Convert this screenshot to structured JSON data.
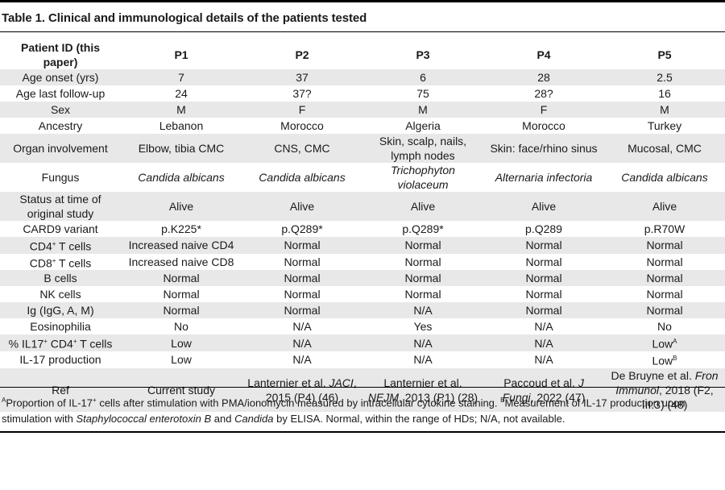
{
  "title": "Table 1. Clinical and immunological details of the patients tested",
  "headers": [
    "Patient ID (this paper)",
    "P1",
    "P2",
    "P3",
    "P4",
    "P5"
  ],
  "rows": [
    {
      "label": "Age onset (yrs)",
      "cells": [
        "7",
        "37",
        "6",
        "28",
        "2.5"
      ]
    },
    {
      "label": "Age last follow-up",
      "cells": [
        "24",
        "37?",
        "75",
        "28?",
        "16"
      ]
    },
    {
      "label": "Sex",
      "cells": [
        "M",
        "F",
        "M",
        "F",
        "M"
      ]
    },
    {
      "label": "Ancestry",
      "cells": [
        "Lebanon",
        "Morocco",
        "Algeria",
        "Morocco",
        "Turkey"
      ]
    },
    {
      "label": "Organ involvement",
      "cells": [
        "Elbow, tibia CMC",
        "CNS, CMC",
        "Skin, scalp, nails, lymph nodes",
        "Skin: face/rhino sinus",
        "Mucosal, CMC"
      ]
    },
    {
      "label": "Fungus",
      "cells": [
        "Candida albicans",
        "Candida albicans",
        "Trichophyton violaceum",
        "Alternaria infectoria",
        "Candida albicans"
      ]
    },
    {
      "label": "Status at time of original study",
      "cells": [
        "Alive",
        "Alive",
        "Alive",
        "Alive",
        "Alive"
      ]
    },
    {
      "label": "CARD9 variant",
      "cells": [
        "p.K225*",
        "p.Q289*",
        "p.Q289*",
        "p.Q289",
        "p.R70W"
      ]
    },
    {
      "label_pre": "CD4",
      "label_sup": "+",
      "label_post": " T cells",
      "cells": [
        "Increased naive CD4",
        "Normal",
        "Normal",
        "Normal",
        "Normal"
      ]
    },
    {
      "label_pre": "CD8",
      "label_sup": "+",
      "label_post": " T cells",
      "cells": [
        "Increased naive CD8",
        "Normal",
        "Normal",
        "Normal",
        "Normal"
      ]
    },
    {
      "label": "B cells",
      "cells": [
        "Normal",
        "Normal",
        "Normal",
        "Normal",
        "Normal"
      ]
    },
    {
      "label": "NK cells",
      "cells": [
        "Normal",
        "Normal",
        "Normal",
        "Normal",
        "Normal"
      ]
    },
    {
      "label": "Ig (IgG, A, M)",
      "cells": [
        "Normal",
        "Normal",
        "N/A",
        "Normal",
        "Normal"
      ]
    },
    {
      "label": "Eosinophilia",
      "cells": [
        "No",
        "N/A",
        "Yes",
        "N/A",
        "No"
      ]
    },
    {
      "label_pre": "% IL17",
      "label_sup": "+",
      "label_mid": " CD4",
      "label_sup2": "+",
      "label_post": " T cells",
      "cells": [
        "Low",
        "N/A",
        "N/A",
        "N/A",
        "Low"
      ],
      "p5_sup": "A"
    },
    {
      "label": "IL-17 production",
      "cells": [
        "Low",
        "N/A",
        "N/A",
        "N/A",
        "Low"
      ],
      "p5_sup": "B"
    },
    {
      "label": "Ref",
      "refs": [
        {
          "text": "Current study"
        },
        {
          "pre": "Lanternier et al. ",
          "ital": "JACI",
          "post": ", 2015 (P4) (46)"
        },
        {
          "pre": "Lanternier et al. ",
          "ital": "NEJM",
          "post": ", 2013 (P1) (28)"
        },
        {
          "pre": "Paccoud et al. ",
          "ital": "J Fungi",
          "post": ", 2022 (47)"
        },
        {
          "pre": "De Bruyne et al. ",
          "ital": "Fron Immunol",
          "post": ", 2018 (F2, III:3) (48)"
        }
      ]
    }
  ],
  "footnote": {
    "mark_a": "A",
    "a_pre": "Proportion of IL-17",
    "a_sup": "+",
    "a_post": " cells after stimulation with PMA/ionomycin measured by intracellular cytokine staining. ",
    "mark_b": "B",
    "b_pre": "Measurement of IL-17 production upon stimulation with ",
    "b_ital1": "Staphylococcal enterotoxin B",
    "b_mid": " and ",
    "b_ital2": "Candida",
    "b_post": " by ELISA. Normal, within the range of HDs; N/A, not available."
  }
}
